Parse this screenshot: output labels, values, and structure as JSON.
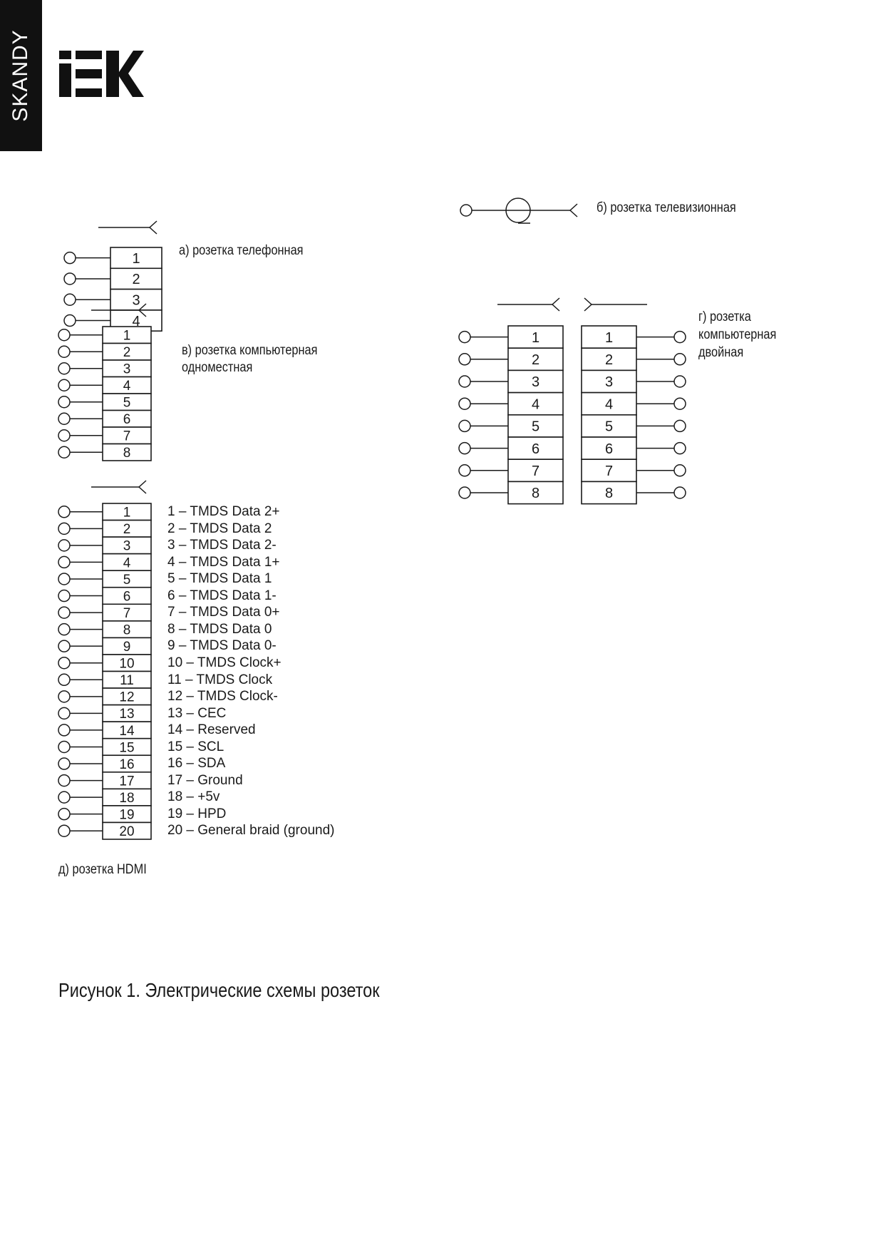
{
  "brand": {
    "series": "SKANDY",
    "logo_text": "IEK"
  },
  "sockets": {
    "phone": {
      "label": "а) розетка телефонная",
      "pins": [
        "1",
        "2",
        "3",
        "4"
      ]
    },
    "tv": {
      "label": "б) розетка телевизионная"
    },
    "computer_single": {
      "label_line1": "в) розетка компьютерная",
      "label_line2": "одноместная",
      "pins": [
        "1",
        "2",
        "3",
        "4",
        "5",
        "6",
        "7",
        "8"
      ]
    },
    "computer_double": {
      "label_line1": "г) розетка",
      "label_line2": "компьютерная",
      "label_line3": "двойная",
      "pins": [
        "1",
        "2",
        "3",
        "4",
        "5",
        "6",
        "7",
        "8"
      ]
    },
    "hdmi": {
      "label": "д) розетка HDMI",
      "pins": [
        "1",
        "2",
        "3",
        "4",
        "5",
        "6",
        "7",
        "8",
        "9",
        "10",
        "11",
        "12",
        "13",
        "14",
        "15",
        "16",
        "17",
        "18",
        "19",
        "20"
      ],
      "descriptions": [
        "1 – TMDS Data 2+",
        "2 – TMDS Data 2",
        "3 – TMDS Data 2-",
        "4 – TMDS Data 1+",
        "5 – TMDS Data 1",
        "6 – TMDS Data 1-",
        "7 – TMDS Data 0+",
        "8 – TMDS Data 0",
        "9 – TMDS Data 0-",
        "10 – TMDS Clock+",
        "11 – TMDS Clock",
        "12 – TMDS Clock-",
        "13 – CEC",
        "14 – Reserved",
        "15 – SCL",
        "16 – SDA",
        "17 – Ground",
        "18 – +5v",
        "19 – HPD",
        "20 – General braid (ground)"
      ]
    }
  },
  "caption": "Рисунок 1. Электрические схемы розеток",
  "colors": {
    "ink": "#1a1a1a",
    "brand_bar": "#111111"
  }
}
